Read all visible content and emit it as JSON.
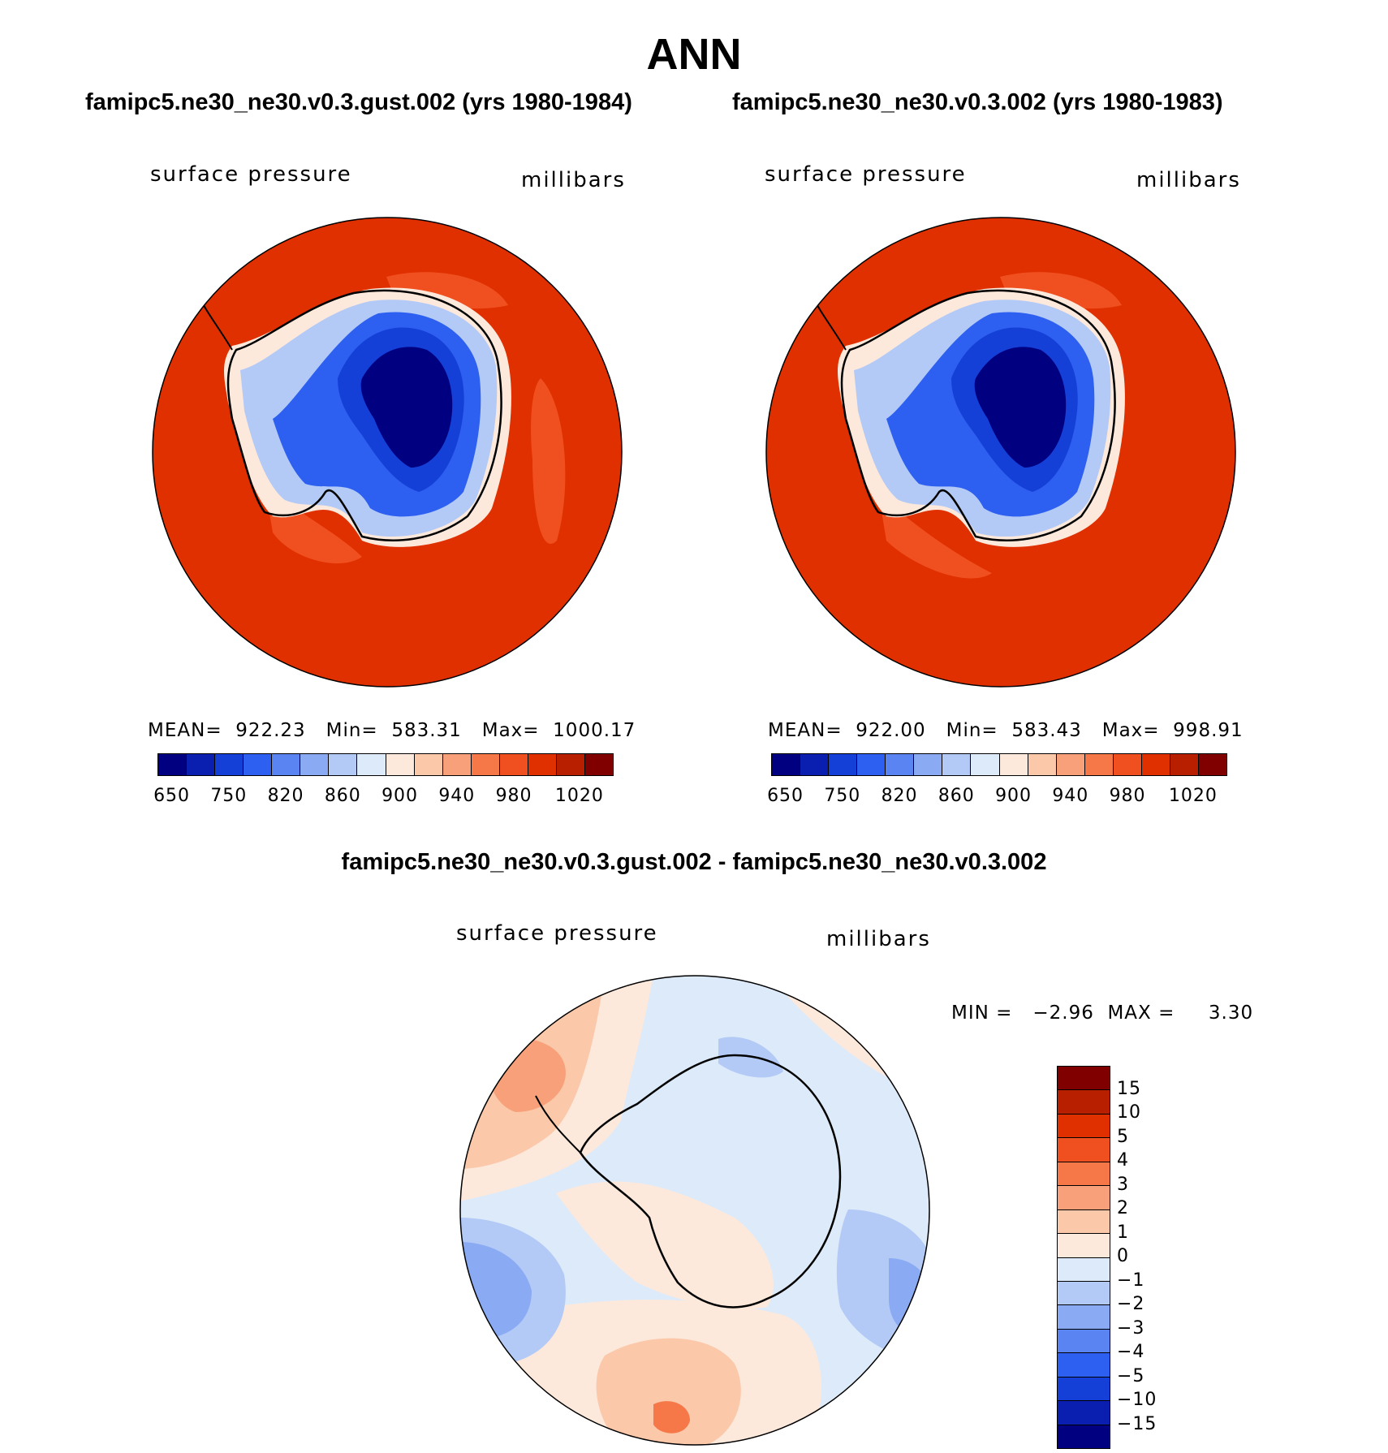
{
  "title": "ANN",
  "panels": [
    {
      "subtitle": "famipc5.ne30_ne30.v0.3.gust.002 (yrs 1980-1984)",
      "variable": "surface pressure",
      "units": "millibars",
      "stats": "MEAN=  922.23   Min=  583.31   Max=  1000.17"
    },
    {
      "subtitle": "famipc5.ne30_ne30.v0.3.002 (yrs 1980-1983)",
      "variable": "surface pressure",
      "units": "millibars",
      "stats": "MEAN=  922.00   Min=  583.43   Max=  998.91"
    }
  ],
  "diff_panel": {
    "subtitle": "famipc5.ne30_ne30.v0.3.gust.002 - famipc5.ne30_ne30.v0.3.002",
    "variable": "surface pressure",
    "units": "millibars",
    "minmax": "MIN =   −2.96  MAX =     3.30"
  },
  "colorbar_abs": {
    "colors": [
      "#000080",
      "#0a1fb0",
      "#1440d8",
      "#2d5ff0",
      "#5a84f2",
      "#8aaaf4",
      "#b3caf6",
      "#dceafa",
      "#fde9dc",
      "#fbc8aa",
      "#f8a07a",
      "#f67848",
      "#f05020",
      "#e03000",
      "#b81e00",
      "#800000"
    ],
    "ticks": [
      "650",
      "750",
      "820",
      "860",
      "900",
      "940",
      "980",
      "1020"
    ]
  },
  "colorbar_diff": {
    "colors": [
      "#800000",
      "#b81e00",
      "#e03000",
      "#f05020",
      "#f67848",
      "#f8a07a",
      "#fbc8aa",
      "#fde9dc",
      "#dceafa",
      "#b3caf6",
      "#8aaaf4",
      "#5a84f2",
      "#2d5ff0",
      "#1440d8",
      "#0a1fb0",
      "#000080"
    ],
    "ticks": [
      "15",
      "10",
      "5",
      "4",
      "3",
      "2",
      "1",
      "0",
      "−1",
      "−2",
      "−3",
      "−4",
      "−5",
      "−10",
      "−15"
    ]
  }
}
